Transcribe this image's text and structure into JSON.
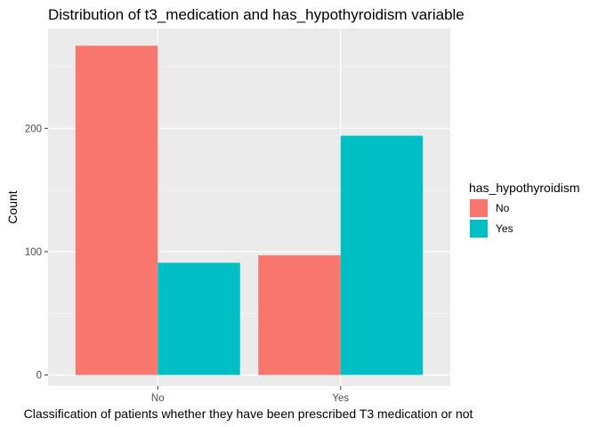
{
  "chart_data": {
    "type": "bar",
    "title": "Distribution of t3_medication and has_hypothyroidism variable",
    "xlabel": "Classification of patients whether they have been prescribed T3 medication or not",
    "ylabel": "Count",
    "categories": [
      "No",
      "Yes"
    ],
    "series": [
      {
        "name": "No",
        "values": [
          267,
          97
        ],
        "color": "#F8766D"
      },
      {
        "name": "Yes",
        "values": [
          91,
          194
        ],
        "color": "#00BFC4"
      }
    ],
    "ylim": [
      -9,
      281
    ],
    "yticks": [
      0,
      100,
      200
    ],
    "ytick_labels": [
      "0",
      "100",
      "200"
    ],
    "grid": true,
    "panel_background": "#EBEBEB",
    "legend": {
      "title": "has_hypothyroidism",
      "position": "right"
    }
  }
}
